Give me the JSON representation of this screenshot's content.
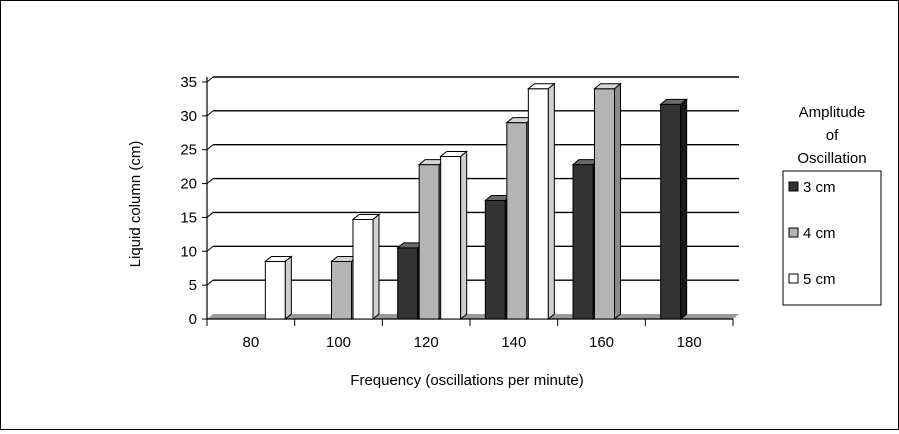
{
  "chart_data": {
    "type": "bar",
    "title": "",
    "xlabel": "Frequency (oscillations per minute)",
    "ylabel": "Liquid column (cm)",
    "categories": [
      "80",
      "100",
      "120",
      "140",
      "160",
      "180"
    ],
    "ylim": [
      0,
      35
    ],
    "yticks": [
      "0",
      "5",
      "10",
      "15",
      "20",
      "25",
      "30",
      "35"
    ],
    "grid": true,
    "legend_title": "Amplitude of Oscillation",
    "legend_position": "right",
    "series": [
      {
        "name": "3 cm",
        "color": "#333333",
        "values": [
          null,
          null,
          10.5,
          17.5,
          22.8,
          31.7
        ]
      },
      {
        "name": "4 cm",
        "color": "#b4b4b4",
        "values": [
          null,
          8.5,
          22.8,
          29,
          34,
          null
        ]
      },
      {
        "name": "5 cm",
        "color": "#ffffff",
        "values": [
          8.5,
          14.7,
          24,
          34,
          null,
          null
        ]
      }
    ]
  }
}
